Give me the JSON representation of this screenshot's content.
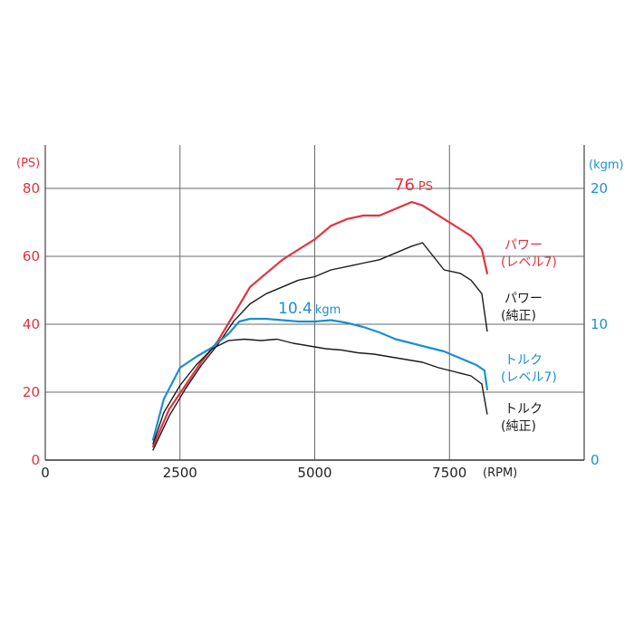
{
  "colors": {
    "power_axis": "#e0303c",
    "torque_axis": "#1a8fd0",
    "tuned_power": "#e5323f",
    "stock": "#1a1a1a",
    "tuned_torque": "#1a8fd0",
    "grid": "#6a6a6a"
  },
  "chart_data": {
    "type": "line",
    "title": "",
    "xlabel": "(RPM)",
    "ylabel_left": "(PS)",
    "ylabel_right": "(kgm)",
    "xlim": [
      0,
      10000
    ],
    "ylim_left": [
      0,
      80
    ],
    "ylim_right": [
      0,
      20
    ],
    "x_ticks": [
      "0",
      "2500",
      "5000",
      "7500"
    ],
    "y_left_ticks": [
      "0",
      "20",
      "40",
      "60",
      "80"
    ],
    "y_right_ticks": [
      "0",
      "10",
      "20"
    ],
    "grid": true,
    "legend": "inline-right",
    "annotations": {
      "peak_power": {
        "value": "76",
        "unit": "PS"
      },
      "peak_torque": {
        "value": "10.4",
        "unit": "kgm"
      }
    },
    "series": [
      {
        "name": "パワー (レベル7)",
        "label_lines": [
          "パワー",
          "(レベル7)"
        ],
        "axis": "left",
        "color": "#e5323f",
        "x": [
          2000,
          2300,
          2600,
          2900,
          3200,
          3500,
          3800,
          4100,
          4400,
          4700,
          5000,
          5300,
          5600,
          5900,
          6200,
          6500,
          6800,
          7000,
          7200,
          7400,
          7700,
          7900,
          8100,
          8200
        ],
        "y": [
          4,
          15,
          22,
          29,
          35,
          43,
          51,
          55,
          59,
          62,
          65,
          69,
          71,
          72,
          72,
          74,
          76,
          75,
          73,
          71,
          68,
          66,
          62,
          55
        ]
      },
      {
        "name": "パワー (純正)",
        "label_lines": [
          "パワー",
          "(純正)"
        ],
        "axis": "left",
        "color": "#1a1a1a",
        "x": [
          2000,
          2300,
          2600,
          2900,
          3200,
          3500,
          3800,
          4100,
          4400,
          4700,
          5000,
          5300,
          5600,
          5900,
          6200,
          6500,
          6800,
          7000,
          7200,
          7400,
          7700,
          7900,
          8000,
          8100,
          8200
        ],
        "y": [
          3,
          13,
          21,
          28,
          34,
          41,
          46,
          49,
          51,
          53,
          54,
          56,
          57,
          58,
          59,
          61,
          63,
          64,
          60,
          56,
          55,
          53,
          51,
          49,
          38
        ]
      },
      {
        "name": "トルク (レベル7)",
        "label_lines": [
          "トルク",
          "(レベル7)"
        ],
        "axis": "right",
        "color": "#1a8fd0",
        "x": [
          2000,
          2200,
          2500,
          2800,
          3100,
          3400,
          3600,
          3800,
          4100,
          4400,
          4700,
          5000,
          5300,
          5600,
          5900,
          6200,
          6500,
          6800,
          7100,
          7400,
          7700,
          8000,
          8150,
          8200
        ],
        "y": [
          1.5,
          4.5,
          6.8,
          7.6,
          8.3,
          9.3,
          10.2,
          10.4,
          10.4,
          10.3,
          10.2,
          10.2,
          10.3,
          10.1,
          9.8,
          9.4,
          8.9,
          8.6,
          8.3,
          8.0,
          7.5,
          7.0,
          6.6,
          5.2
        ]
      },
      {
        "name": "トルク (純正)",
        "label_lines": [
          "トルク",
          "(純正)"
        ],
        "axis": "right",
        "color": "#1a1a1a",
        "x": [
          2000,
          2200,
          2500,
          2800,
          3100,
          3400,
          3700,
          4000,
          4300,
          4600,
          4900,
          5200,
          5500,
          5800,
          6100,
          6400,
          6700,
          7000,
          7300,
          7600,
          7900,
          8100,
          8200
        ],
        "y": [
          1.2,
          3.5,
          5.5,
          7.0,
          8.2,
          8.8,
          8.9,
          8.8,
          8.9,
          8.6,
          8.4,
          8.2,
          8.1,
          7.9,
          7.8,
          7.6,
          7.4,
          7.2,
          6.8,
          6.5,
          6.2,
          5.6,
          3.4
        ]
      }
    ]
  }
}
